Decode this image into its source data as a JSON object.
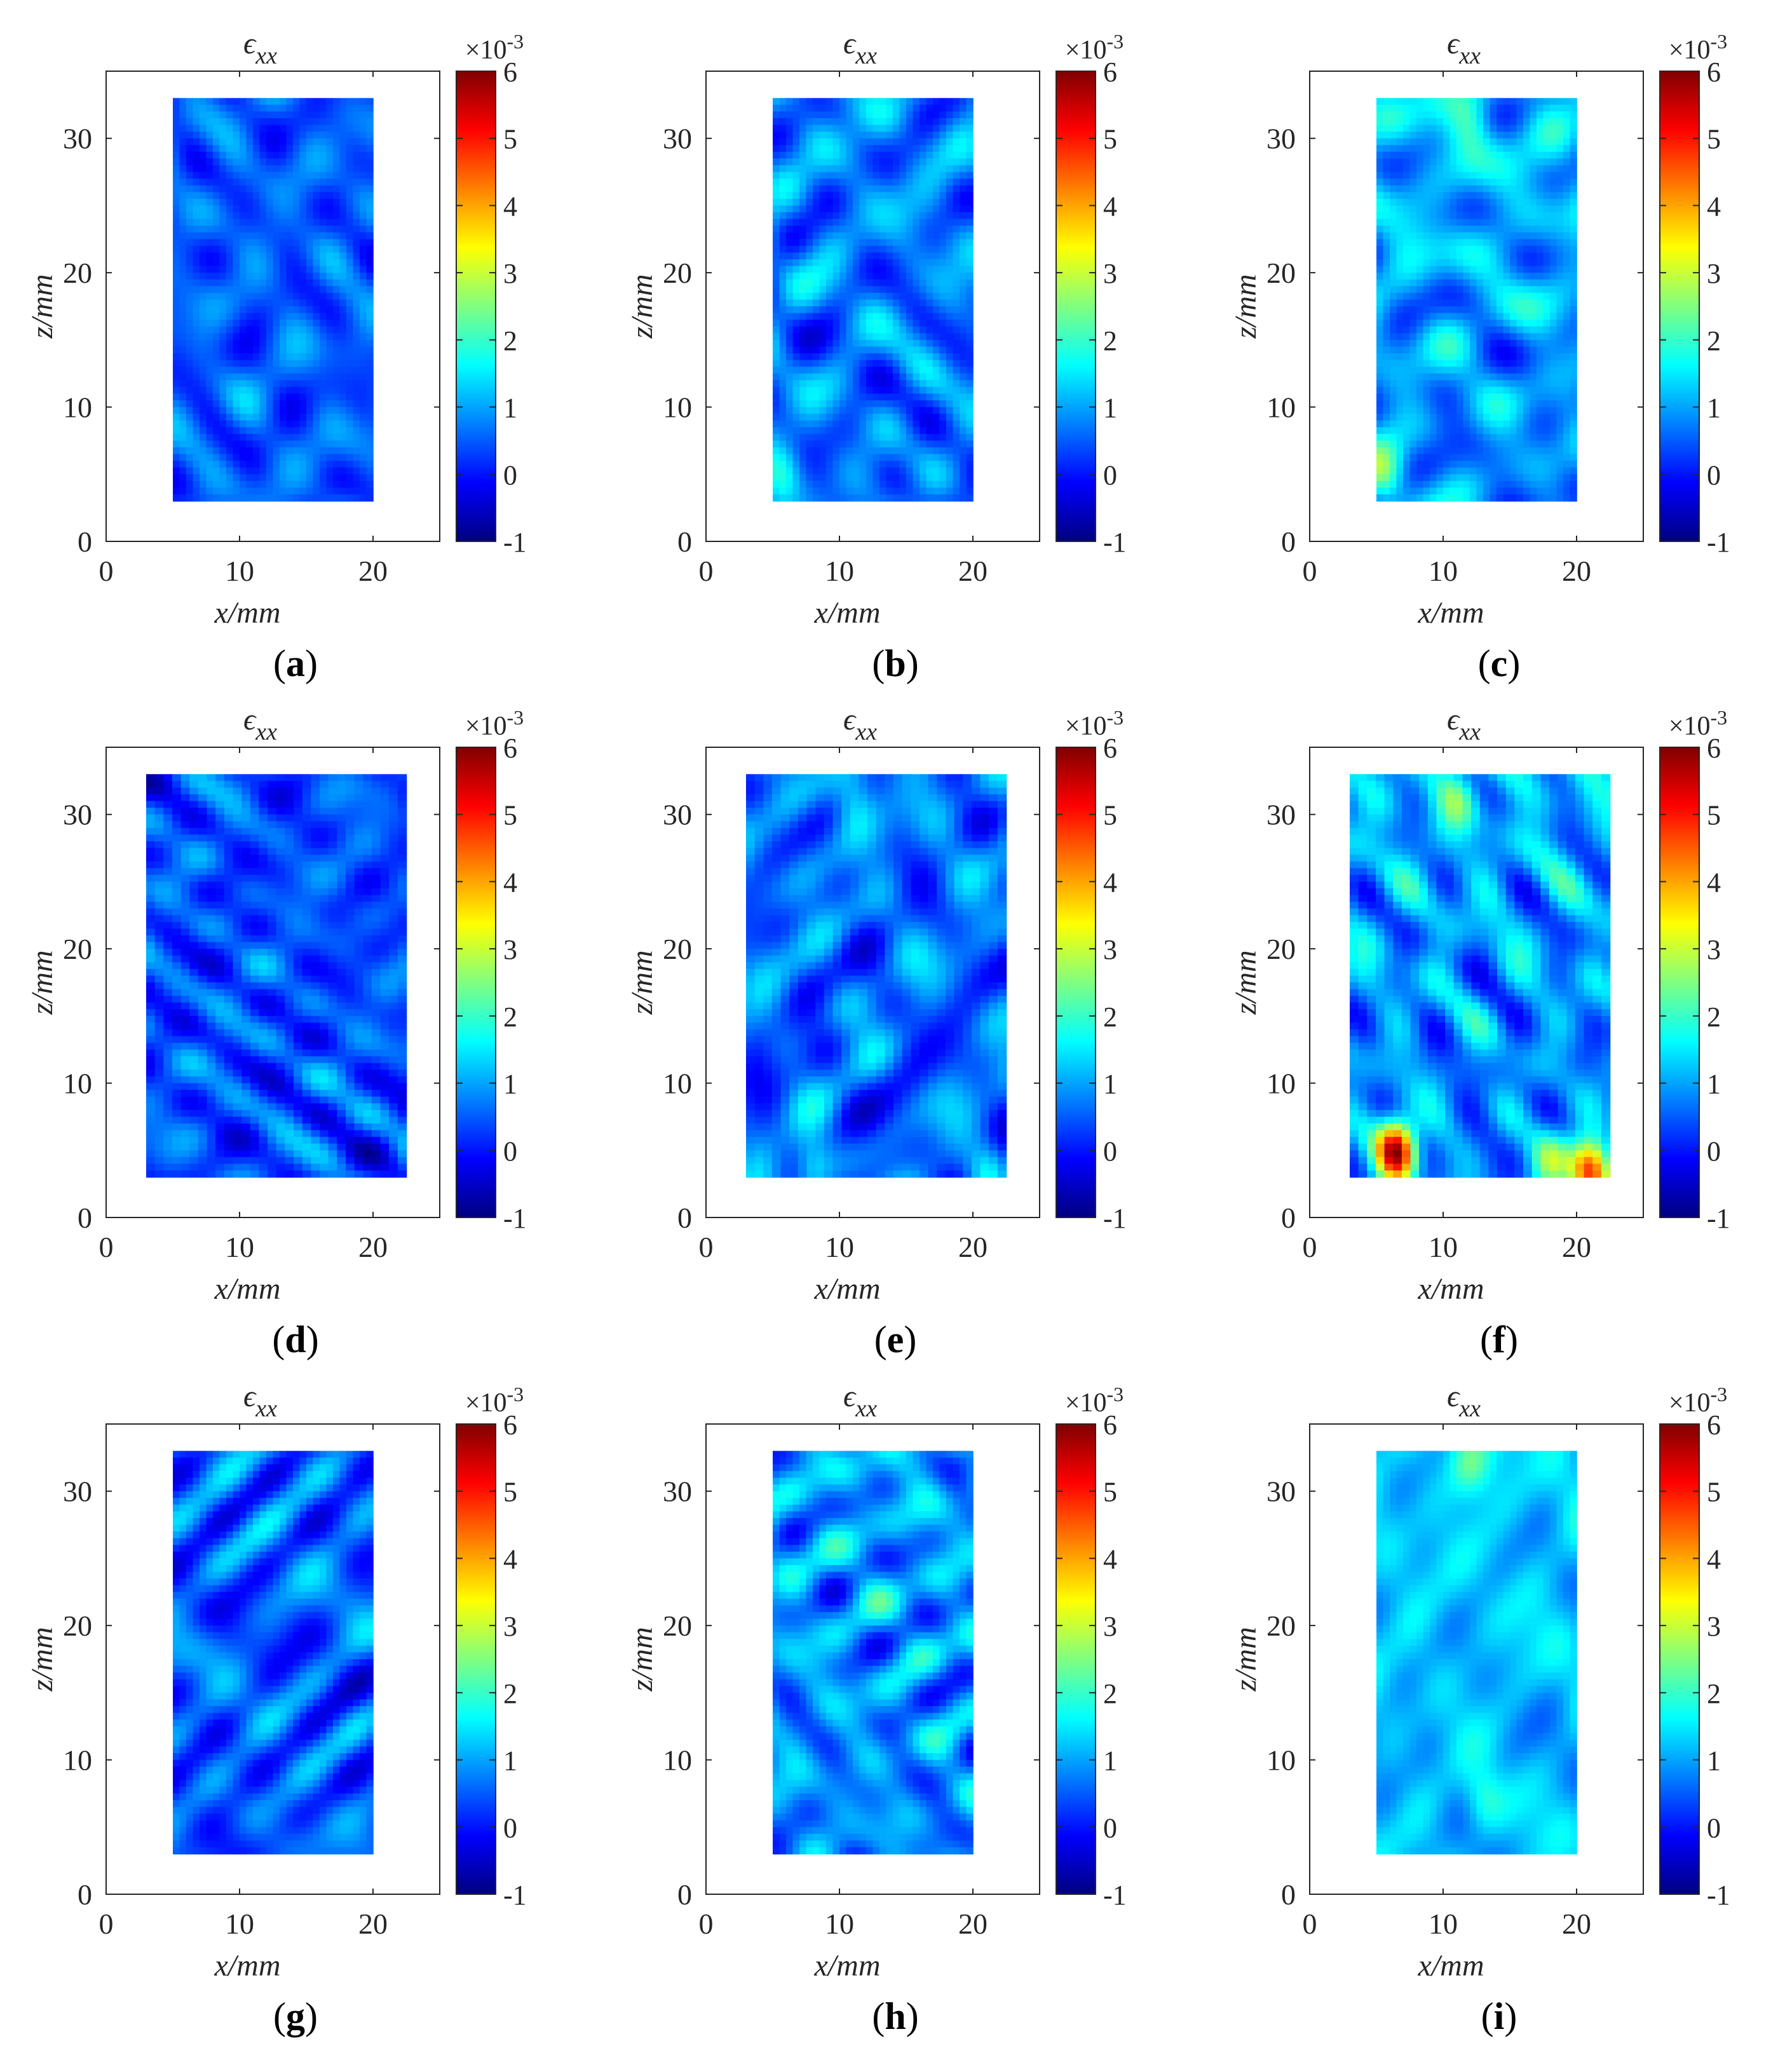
{
  "colorbar": {
    "colors": [
      "#000080",
      "#0000ff",
      "#0080ff",
      "#00ffff",
      "#80ff80",
      "#ffff00",
      "#ff8000",
      "#ff0000",
      "#800000"
    ],
    "exponent_label": "×10-3",
    "ticks": [
      -1,
      0,
      1,
      2,
      3,
      4,
      5,
      6
    ]
  },
  "chart_data": [
    {
      "panel": "a",
      "type": "heatmap",
      "title": "ϵxx",
      "xlabel": "x/mm",
      "ylabel": "z/mm",
      "xlim": [
        0,
        25
      ],
      "ylim": [
        0,
        35
      ],
      "xticks": [
        0,
        10,
        20
      ],
      "yticks": [
        0,
        10,
        20,
        30
      ],
      "clim": [
        -1,
        6
      ],
      "field_x": [
        5,
        20
      ],
      "field_z": [
        3,
        33
      ],
      "mean": 0.5,
      "amplitude": 0.8,
      "grad": 0.0,
      "hotspots": [],
      "seed": 11
    },
    {
      "panel": "b",
      "type": "heatmap",
      "title": "ϵxx",
      "xlabel": "x/mm",
      "ylabel": "z/mm",
      "xlim": [
        0,
        25
      ],
      "ylim": [
        0,
        35
      ],
      "xticks": [
        0,
        10,
        20
      ],
      "yticks": [
        0,
        10,
        20,
        30
      ],
      "clim": [
        -1,
        6
      ],
      "field_x": [
        5,
        20
      ],
      "field_z": [
        3,
        33
      ],
      "mean": 0.7,
      "amplitude": 0.9,
      "grad": 0.1,
      "hotspots": [
        {
          "x": 5.5,
          "z": 5,
          "v": 1.2
        }
      ],
      "seed": 23
    },
    {
      "panel": "c",
      "type": "heatmap",
      "title": "ϵxx",
      "xlabel": "x/mm",
      "ylabel": "z/mm",
      "xlim": [
        0,
        25
      ],
      "ylim": [
        0,
        35
      ],
      "xticks": [
        0,
        10,
        20
      ],
      "yticks": [
        0,
        10,
        20,
        30
      ],
      "clim": [
        -1,
        6
      ],
      "field_x": [
        5,
        20
      ],
      "field_z": [
        3,
        33
      ],
      "mean": 1.0,
      "amplitude": 0.9,
      "grad": 0.2,
      "hotspots": [
        {
          "x": 5.5,
          "z": 5,
          "v": 1.5
        },
        {
          "x": 12,
          "z": 31,
          "v": 0.8
        }
      ],
      "seed": 37
    },
    {
      "panel": "d",
      "type": "heatmap",
      "title": "ϵxx",
      "xlabel": "x/mm",
      "ylabel": "z/mm",
      "xlim": [
        0,
        25
      ],
      "ylim": [
        0,
        35
      ],
      "xticks": [
        0,
        10,
        20
      ],
      "yticks": [
        0,
        10,
        20,
        30
      ],
      "clim": [
        -1,
        6
      ],
      "field_x": [
        3,
        22.5
      ],
      "field_z": [
        3,
        33
      ],
      "mean": 0.4,
      "amplitude": 0.8,
      "grad": 0.0,
      "hotspots": [],
      "seed": 41
    },
    {
      "panel": "e",
      "type": "heatmap",
      "title": "ϵxx",
      "xlabel": "x/mm",
      "ylabel": "z/mm",
      "xlim": [
        0,
        25
      ],
      "ylim": [
        0,
        35
      ],
      "xticks": [
        0,
        10,
        20
      ],
      "yticks": [
        0,
        10,
        20,
        30
      ],
      "clim": [
        -1,
        6
      ],
      "field_x": [
        3,
        22.5
      ],
      "field_z": [
        3,
        33
      ],
      "mean": 0.6,
      "amplitude": 0.9,
      "grad": 0.1,
      "hotspots": [
        {
          "x": 8,
          "z": 3.5,
          "v": 1.3
        },
        {
          "x": 21,
          "z": 3.5,
          "v": 1.2
        },
        {
          "x": 11,
          "z": 31,
          "v": 0.8
        }
      ],
      "seed": 53
    },
    {
      "panel": "f",
      "type": "heatmap",
      "title": "ϵxx",
      "xlabel": "x/mm",
      "ylabel": "z/mm",
      "xlim": [
        0,
        25
      ],
      "ylim": [
        0,
        35
      ],
      "xticks": [
        0,
        10,
        20
      ],
      "yticks": [
        0,
        10,
        20,
        30
      ],
      "clim": [
        -1,
        6
      ],
      "field_x": [
        3,
        22.5
      ],
      "field_z": [
        3,
        33
      ],
      "mean": 0.9,
      "amplitude": 0.9,
      "grad": 0.2,
      "hotspots": [
        {
          "x": 6.5,
          "z": 5,
          "v": 5.0
        },
        {
          "x": 21,
          "z": 3.5,
          "v": 4.0
        },
        {
          "x": 18,
          "z": 4,
          "v": 1.8
        },
        {
          "x": 11,
          "z": 31,
          "v": 1.0
        }
      ],
      "seed": 67
    },
    {
      "panel": "g",
      "type": "heatmap",
      "title": "ϵxx",
      "xlabel": "x/mm",
      "ylabel": "z/mm",
      "xlim": [
        0,
        25
      ],
      "ylim": [
        0,
        35
      ],
      "xticks": [
        0,
        10,
        20
      ],
      "yticks": [
        0,
        10,
        20,
        30
      ],
      "clim": [
        -1,
        6
      ],
      "field_x": [
        5,
        20
      ],
      "field_z": [
        3,
        33
      ],
      "mean": 0.5,
      "amplitude": 0.8,
      "grad": 0.05,
      "hotspots": [],
      "seed": 71
    },
    {
      "panel": "h",
      "type": "heatmap",
      "title": "ϵxx",
      "xlabel": "x/mm",
      "ylabel": "z/mm",
      "xlim": [
        0,
        25
      ],
      "ylim": [
        0,
        35
      ],
      "xticks": [
        0,
        10,
        20
      ],
      "yticks": [
        0,
        10,
        20,
        30
      ],
      "clim": [
        -1,
        6
      ],
      "field_x": [
        5,
        20
      ],
      "field_z": [
        3,
        33
      ],
      "mean": 0.9,
      "amplitude": 0.8,
      "grad": 0.1,
      "hotspots": [],
      "seed": 83
    },
    {
      "panel": "i",
      "type": "heatmap",
      "title": "ϵxx",
      "xlabel": "x/mm",
      "ylabel": "z/mm",
      "xlim": [
        0,
        25
      ],
      "ylim": [
        0,
        35
      ],
      "xticks": [
        0,
        10,
        20
      ],
      "yticks": [
        0,
        10,
        20,
        30
      ],
      "clim": [
        -1,
        6
      ],
      "field_x": [
        5,
        20
      ],
      "field_z": [
        3,
        33
      ],
      "mean": 1.2,
      "amplitude": 0.8,
      "grad": 0.1,
      "hotspots": [
        {
          "x": 12,
          "z": 32,
          "v": 1.0
        },
        {
          "x": 13,
          "z": 7,
          "v": 0.9
        }
      ],
      "seed": 97
    }
  ],
  "captions": [
    "a",
    "b",
    "c",
    "d",
    "e",
    "f",
    "g",
    "h",
    "i"
  ]
}
